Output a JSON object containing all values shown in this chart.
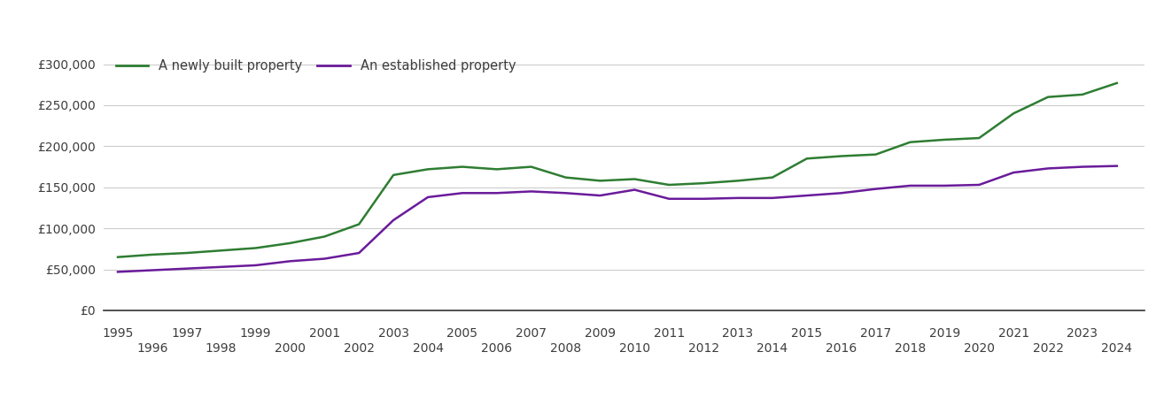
{
  "legend_entries": [
    "A newly built property",
    "An established property"
  ],
  "line_colors": [
    "#2e7d32",
    "#6a1b9a"
  ],
  "line_width": 1.8,
  "years": [
    1995,
    1996,
    1997,
    1998,
    1999,
    2000,
    2001,
    2002,
    2003,
    2004,
    2005,
    2006,
    2007,
    2008,
    2009,
    2010,
    2011,
    2012,
    2013,
    2014,
    2015,
    2016,
    2017,
    2018,
    2019,
    2020,
    2021,
    2022,
    2023,
    2024
  ],
  "newly_built": [
    65000,
    68000,
    70000,
    73000,
    76000,
    82000,
    90000,
    105000,
    165000,
    172000,
    175000,
    172000,
    175000,
    162000,
    158000,
    160000,
    153000,
    155000,
    158000,
    162000,
    185000,
    188000,
    190000,
    205000,
    208000,
    210000,
    240000,
    260000,
    263000,
    277000
  ],
  "established": [
    47000,
    49000,
    51000,
    53000,
    55000,
    60000,
    63000,
    70000,
    110000,
    138000,
    143000,
    143000,
    145000,
    143000,
    140000,
    147000,
    136000,
    136000,
    137000,
    137000,
    140000,
    143000,
    148000,
    152000,
    152000,
    153000,
    168000,
    173000,
    175000,
    176000
  ],
  "ylim": [
    0,
    320000
  ],
  "yticks": [
    0,
    50000,
    100000,
    150000,
    200000,
    250000,
    300000
  ],
  "ytick_labels": [
    "£0",
    "£50,000",
    "£100,000",
    "£150,000",
    "£200,000",
    "£250,000",
    "£300,000"
  ],
  "xlim_min": 1994.6,
  "xlim_max": 2024.8,
  "xticks_odd": [
    1995,
    1997,
    1999,
    2001,
    2003,
    2005,
    2007,
    2009,
    2011,
    2013,
    2015,
    2017,
    2019,
    2021,
    2023
  ],
  "xticks_even": [
    1996,
    1998,
    2000,
    2002,
    2004,
    2006,
    2008,
    2010,
    2012,
    2014,
    2016,
    2018,
    2020,
    2022,
    2024
  ],
  "background_color": "#ffffff",
  "grid_color": "#cccccc",
  "text_color": "#3d3d3d",
  "font_size_tick": 10,
  "font_size_legend": 10.5
}
